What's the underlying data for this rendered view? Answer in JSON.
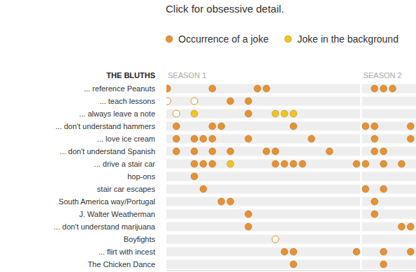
{
  "chart_data": {
    "type": "scatter",
    "title": "Click for obsessive detail.",
    "group": "THE BLUTHS",
    "legend": "top",
    "tick_labels": "y",
    "categories": [
      "... reference Peanuts",
      "... teach lessons",
      "... always leave a note",
      "... don't understand hammers",
      "... love ice cream",
      "... don't understand Spanish",
      "... drive a stair car",
      "hop-ons",
      "stair car escapes",
      "South America way/Portugal",
      "J. Walter Weatherman",
      "... don't understand marijuana",
      "Boyfights",
      "... flirt with incest",
      "The Chicken Dance"
    ],
    "seasons": [
      {
        "label": "SEASON 1",
        "first": 1,
        "last": 22
      },
      {
        "label": "SEASON 2",
        "first": 23,
        "last": 29
      }
    ],
    "xlim": [
      0.9,
      28.6
    ],
    "series": [
      {
        "name": "Occurrence of a joke",
        "color": "#e8922e",
        "marker": "circle",
        "x": [
          1,
          6,
          11,
          12,
          24,
          25,
          26,
          8,
          10,
          10,
          2,
          6,
          7,
          15,
          23,
          24,
          28,
          2,
          4,
          5,
          6,
          10,
          17,
          24,
          28,
          2,
          4,
          6,
          8,
          12,
          13,
          19,
          24,
          25,
          4,
          5,
          6,
          13,
          14,
          15,
          16,
          22,
          23,
          25,
          27,
          4,
          5,
          23,
          25,
          7,
          8,
          24,
          10,
          24,
          10,
          27,
          28,
          14,
          15,
          22,
          25,
          28,
          15,
          25
        ],
        "y": [
          0,
          0,
          0,
          0,
          0,
          0,
          0,
          1,
          1,
          2,
          3,
          3,
          3,
          3,
          3,
          3,
          3,
          4,
          4,
          4,
          4,
          4,
          4,
          4,
          4,
          5,
          5,
          5,
          5,
          5,
          5,
          5,
          5,
          5,
          6,
          6,
          6,
          6,
          6,
          6,
          6,
          6,
          6,
          6,
          6,
          7,
          8,
          8,
          8,
          9,
          9,
          9,
          10,
          10,
          11,
          11,
          11,
          13,
          13,
          13,
          13,
          13,
          14,
          14
        ]
      },
      {
        "name": "Joke in the background",
        "color": "#f2c41c",
        "marker": "circle",
        "x": [
          4,
          13,
          14,
          15,
          8
        ],
        "y": [
          2,
          2,
          2,
          2,
          6
        ]
      },
      {
        "color": "#e8922e",
        "marker": "hollow",
        "x": [
          1,
          4,
          2,
          13
        ],
        "y": [
          1,
          1,
          2,
          12
        ]
      }
    ]
  }
}
